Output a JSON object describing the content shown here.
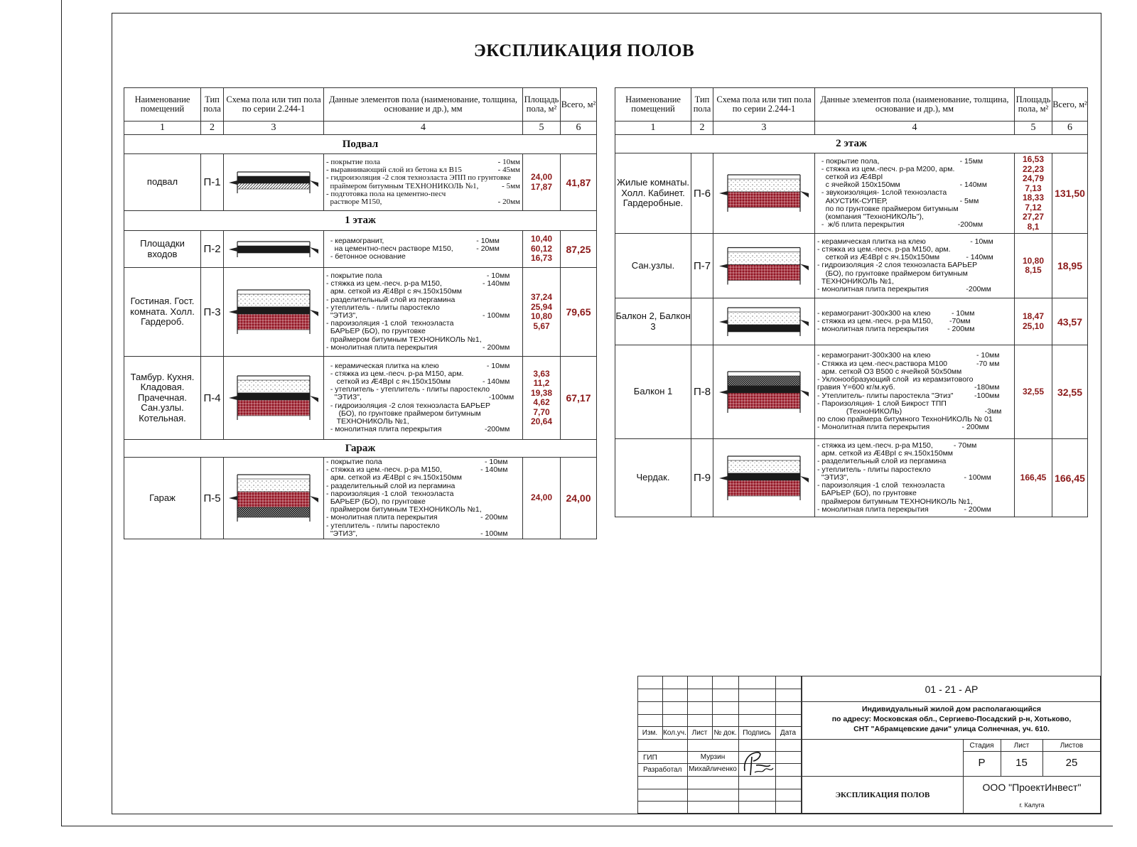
{
  "title": "ЭКСПЛИКАЦИЯ ПОЛОВ",
  "headers": [
    "Наименование помещений",
    "Тип пола",
    "Схема пола или тип пола по серии 2.244-1",
    "Данные элементов пола (наименование, толщина, основание и др.), мм",
    "Площадь пола, м²",
    "Всего, м²"
  ],
  "column_numbers": [
    "1",
    "2",
    "3",
    "4",
    "5",
    "6"
  ],
  "left_table": [
    {
      "section": "Подвал"
    },
    {
      "name": "подвал",
      "type": "П-1",
      "scheme": [
        "black",
        "hatch"
      ],
      "serif": true,
      "lines": [
        [
          "- покрытие пола",
          "- 10мм"
        ],
        [
          "- выравнивающий слой из бетона кл В15",
          "- 45мм"
        ],
        [
          "- гидроизоляция -2 слоя техноэласта ЭПП по грунтовке",
          ""
        ],
        [
          "  праймером битумным ТЕХНОНИКОЛЬ №1,",
          "- 5мм"
        ],
        [
          "- подготовка пола на цементно-песч",
          ""
        ],
        [
          "  растворе М150,",
          "- 20мм"
        ]
      ],
      "areas": [
        "24,00",
        "17,87"
      ],
      "total": "41,87"
    },
    {
      "section": "1 этаж"
    },
    {
      "name": "Площадки входов",
      "type": "П-2",
      "scheme": [
        "black"
      ],
      "lines": [
        [
          "  - керамогранит,",
          "- 10мм          "
        ],
        [
          "    на цементно-песч растворе М150,",
          "- 20мм          "
        ],
        [
          "  - бетонное основание",
          ""
        ]
      ],
      "areas": [
        "10,40",
        "60,12",
        "16,73"
      ],
      "total": "87,25"
    },
    {
      "name": "Гостиная. Гост. комната. Холл. Гардероб.",
      "type": "П-3",
      "scheme": [
        "dots",
        "black",
        "red"
      ],
      "lines": [
        [
          "- покрытие пола",
          "- 10мм     "
        ],
        [
          "- стяжка из цем.-песч. р-ра М150,",
          "- 140мм     "
        ],
        [
          "  арм. сеткой из Æ4BpI с яч.150х150мм",
          ""
        ],
        [
          "- разделительный слой из пергамина",
          ""
        ],
        [
          "- утеплитель - плиты паростекло",
          ""
        ],
        [
          "  \"ЭТИЗ\",",
          "- 100мм     "
        ],
        [
          "- пароизоляция -1 слой  техноэласта",
          ""
        ],
        [
          "  БАРЬЕР (БО), по грунтовке",
          ""
        ],
        [
          "  праймером битумным ТЕХНОНИКОЛЬ №1,",
          ""
        ],
        [
          "- монолитная плита перекрытия",
          "- 200мм     "
        ]
      ],
      "areas": [
        "37,24",
        "25,94",
        "10,80",
        "5,67"
      ],
      "total": "79,65"
    },
    {
      "name": "Тамбур. Кухня. Кладовая. Прачечная. Сан.узлы. Котельная.",
      "type": "П-4",
      "scheme": [
        "dots",
        "black",
        "red"
      ],
      "lines": [
        [
          "  - керамическая плитка на клею",
          "- 10мм     "
        ],
        [
          "  - стяжка из цем.-песч. р-ра М150, арм.",
          ""
        ],
        [
          "     сеткой из Æ4BpI с яч.150х150мм",
          "- 140мм     "
        ],
        [
          "  - утеплитель - утеплитель - плиты паростекло",
          ""
        ],
        [
          "    \"ЭТИЗ\",",
          "-100мм   "
        ],
        [
          "  - гидроизоляция -2 слоя техноэласта БАРЬЕР",
          ""
        ],
        [
          "      (БО), по грунтовке праймером битумным",
          ""
        ],
        [
          "     ТЕХНОНИКОЛЬ №1,",
          ""
        ],
        [
          "  - монолитная плита перекрытия",
          "-200мм     "
        ]
      ],
      "areas": [
        "3,63",
        "11,2",
        "19,38",
        "4,62",
        "7,70",
        "20,64"
      ],
      "total": "67,17"
    },
    {
      "section": "Гараж"
    },
    {
      "name": "Гараж",
      "type": "П-5",
      "scheme": [
        "dots",
        "red",
        "grid"
      ],
      "lines": [
        [
          "- покрытие пола",
          "- 10мм      "
        ],
        [
          "- стяжка из цем.-песч. р-ра М150,",
          "- 140мм      "
        ],
        [
          "  арм. сеткой из Æ4BpI с яч.150х150мм",
          ""
        ],
        [
          "- разделительный слой из пергамина",
          ""
        ],
        [
          "- пароизоляция -1 слой  техноэласта",
          ""
        ],
        [
          "  БАРЬЕР (БО), по грунтовке",
          ""
        ],
        [
          "  праймером битумным ТЕХНОНИКОЛЬ №1,",
          ""
        ],
        [
          "- монолитная плита перекрытия",
          "- 200мм      "
        ],
        [
          "- утеплитель - плиты паростекло",
          ""
        ],
        [
          "  \"ЭТИЗ\",",
          "- 100мм      "
        ]
      ],
      "areas": [
        "24,00"
      ],
      "total": "24,00"
    }
  ],
  "right_table": [
    {
      "section": "2  этаж"
    },
    {
      "name": "Жилые комнаты. Холл. Кабинет. Гардеробные.",
      "type": "П-6",
      "scheme": [
        "dots",
        "red"
      ],
      "lines": [
        [
          "  - покрытие пола,",
          "- 15мм              "
        ],
        [
          "  - стяжка из цем.-песч. р-ра М200, арм.",
          ""
        ],
        [
          "    сеткой из Æ4BpI",
          ""
        ],
        [
          "    с ячейкой 150х150мм",
          "- 140мм            "
        ],
        [
          "  - звукоизоляция- 1слой техноэласта",
          ""
        ],
        [
          "    АКУСТИК-СУПЕР,",
          "- 5мм                "
        ],
        [
          "    по по грунтовке праймером битумным",
          ""
        ],
        [
          "    (компания \"ТехноНИКОЛЬ\"),",
          ""
        ],
        [
          "  -  ж/б плита перекрытия",
          "-200мм              "
        ]
      ],
      "areas": [
        "16,53",
        "22,23",
        "24,79",
        "7,13",
        "18,33",
        "7,12",
        "27,27",
        "8,1"
      ],
      "total": "131,50"
    },
    {
      "name": "Сан.узлы.",
      "type": "П-7",
      "scheme": [
        "dots",
        "red"
      ],
      "lines": [
        [
          "- керамическая плитка на клею",
          "- 10мм         "
        ],
        [
          "- стяжка из цем.-песч. р-ра М150, арм.",
          ""
        ],
        [
          "    сеткой из Æ4BpI с яч.150х150мм",
          "- 140мм         "
        ],
        [
          "- гидроизоляция -2 слоя техноэласта БАРЬЕР",
          ""
        ],
        [
          "    (БО), по грунтовке праймером битумным",
          ""
        ],
        [
          "  ТЕХНОНИКОЛЬ №1,",
          ""
        ],
        [
          "- монолитная плита перекрытия",
          "-200мм          "
        ]
      ],
      "areas": [
        "10,80",
        "8,15"
      ],
      "total": "18,95"
    },
    {
      "name": "Балкон 2, Балкон 3",
      "type": "",
      "scheme": [
        "dots",
        "black"
      ],
      "lines": [
        [
          "- керамогранит-300х300 на клею",
          "- 10мм                  "
        ],
        [
          "- стяжка из цем.-песч. р-ра М150,",
          "-70мм                    "
        ],
        [
          "- монолитная плита перекрытия",
          "- 200мм                  "
        ]
      ],
      "areas": [
        "18,47",
        "25,10"
      ],
      "total": "43,57"
    },
    {
      "name": "Балкон 1",
      "type": "П-8",
      "scheme": [
        "grid",
        "black",
        "red"
      ],
      "lines": [
        [
          "- керамогранит-300х300 на клею",
          "- 10мм      "
        ],
        [
          "- Стяжка из цем.-песч.раствора М100",
          "-70 мм      "
        ],
        [
          "  арм. сеткой О3 В500 с ячейкой 50х50мм",
          ""
        ],
        [
          "- Уклонообразующий слой  из керамзитового",
          ""
        ],
        [
          "гравия Y=600 кг/м.куб.",
          "-180мм      "
        ],
        [
          "- Утеплитель- плиты паростекла \"Этиз\"",
          "-100мм      "
        ],
        [
          "- Пароизоляция- 1 слой Бикрост ТПП",
          ""
        ],
        [
          "              (ТехноНИКОЛЬ)",
          "-3мм     "
        ],
        [
          "по слою праймера битумного ТехноНИКОЛЬ № 01",
          ""
        ],
        [
          "- Монолитная плита перекрытия",
          "- 200мм           "
        ]
      ],
      "areas": [
        "32,55"
      ],
      "total": "32,55"
    },
    {
      "name": "Чердак.",
      "type": "П-9",
      "scheme": [
        "dots",
        "black",
        "red"
      ],
      "lines": [
        [
          "- стяжка из цем.-песч. р-ра М150,",
          "- 70мм                 "
        ],
        [
          "  арм. сеткой из Æ4BpI с яч.150х150мм",
          ""
        ],
        [
          "- разделительный слой из пергамина",
          ""
        ],
        [
          "- утеплитель - плиты паростекло",
          ""
        ],
        [
          "  \"ЭТИЗ\",",
          "- 100мм          "
        ],
        [
          "- пароизоляция -1 слой  техноэласта",
          ""
        ],
        [
          "  БАРЬЕР (БО), по грунтовке",
          ""
        ],
        [
          "  праймером битумным ТЕХНОНИКОЛЬ №1,",
          ""
        ],
        [
          "- монолитная плита перекрытия",
          "- 200мм          "
        ]
      ],
      "areas": [
        "166,45"
      ],
      "total": "166,45"
    }
  ],
  "title_block": {
    "code": "01 - 21 - АР",
    "address": [
      "Индивидуальный жилой дом располагающийся",
      "по адресу: Московская обл., Сергиево-Посадский р-н, Хотьково,",
      "СНТ \"Абрамцевские дачи\" улица Солнечная, уч. 610."
    ],
    "columns": [
      "Изм.",
      "Кол.уч.",
      "Лист",
      "№ док.",
      "Подпись",
      "Дата"
    ],
    "roles": [
      {
        "role": "ГИП",
        "person": "Мурзин"
      },
      {
        "role": "Разработал",
        "person": "Михайличенко"
      }
    ],
    "stage_label": "Стадия",
    "sheet_label": "Лист",
    "sheets_label": "Листов",
    "stage": "Р",
    "sheet": "15",
    "sheets": "25",
    "sheet_title": "ЭКСПЛИКАЦИЯ ПОЛОВ",
    "company": "ООО \"ПроектИнвест\"",
    "city": "г. Калуга"
  },
  "colors": {
    "area_text": "#8b1a1a",
    "insulation": "#b0303a",
    "lines": "#222222"
  }
}
